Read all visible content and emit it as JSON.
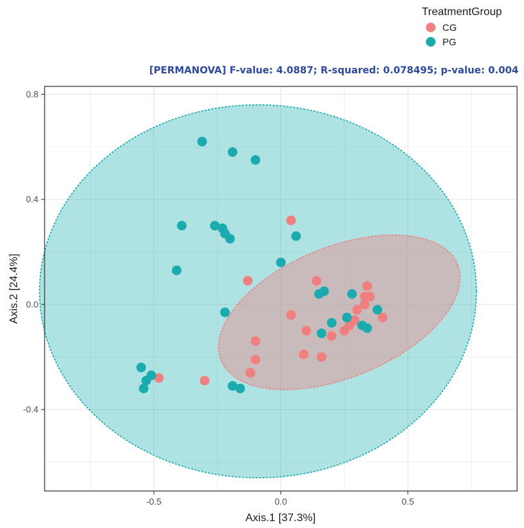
{
  "chart_data": {
    "type": "scatter",
    "title": "",
    "annotation": "[PERMANOVA] F-value: 4.0887; R-squared: 0.078495; p-value: 0.004",
    "xlabel": "Axis.1   [37.3%]",
    "ylabel": "Axis.2   [24.4%]",
    "xlim": [
      -0.93,
      0.93
    ],
    "ylim": [
      -0.71,
      0.83
    ],
    "x_ticks": [
      -0.5,
      0.0,
      0.5
    ],
    "x_tick_labels": [
      "-0.5",
      "0.0",
      "0.5"
    ],
    "y_ticks": [
      -0.4,
      0.0,
      0.4,
      0.8
    ],
    "y_tick_labels": [
      "-0.4",
      "0.0",
      "0.4",
      "0.8"
    ],
    "grid": true,
    "legend": {
      "title": "TreatmentGroup",
      "position": "top-right"
    },
    "series": [
      {
        "name": "CG",
        "color": "#F08080",
        "ellipse": {
          "cx": 0.23,
          "cy": -0.03,
          "rx": 0.5,
          "ry": 0.25,
          "angle_deg": 21
        },
        "points": [
          [
            -0.48,
            -0.28
          ],
          [
            -0.3,
            -0.29
          ],
          [
            -0.13,
            0.09
          ],
          [
            -0.1,
            -0.14
          ],
          [
            -0.1,
            -0.21
          ],
          [
            -0.12,
            -0.26
          ],
          [
            0.04,
            0.32
          ],
          [
            0.04,
            -0.04
          ],
          [
            0.1,
            -0.1
          ],
          [
            0.09,
            -0.19
          ],
          [
            0.14,
            0.09
          ],
          [
            0.16,
            -0.2
          ],
          [
            0.2,
            -0.12
          ],
          [
            0.25,
            -0.1
          ],
          [
            0.27,
            -0.08
          ],
          [
            0.29,
            -0.06
          ],
          [
            0.3,
            -0.02
          ],
          [
            0.33,
            0.0
          ],
          [
            0.33,
            0.03
          ],
          [
            0.35,
            0.03
          ],
          [
            0.34,
            0.07
          ],
          [
            0.4,
            -0.05
          ]
        ]
      },
      {
        "name": "PG",
        "color": "#1AABAE",
        "ellipse": {
          "cx": -0.09,
          "cy": 0.05,
          "rx": 0.86,
          "ry": 0.71,
          "angle_deg": 0
        },
        "points": [
          [
            -0.31,
            0.62
          ],
          [
            -0.19,
            0.58
          ],
          [
            -0.1,
            0.55
          ],
          [
            -0.39,
            0.3
          ],
          [
            -0.26,
            0.3
          ],
          [
            -0.23,
            0.29
          ],
          [
            -0.22,
            0.27
          ],
          [
            -0.2,
            0.25
          ],
          [
            -0.41,
            0.13
          ],
          [
            0.06,
            0.26
          ],
          [
            0.0,
            0.16
          ],
          [
            -0.22,
            -0.03
          ],
          [
            -0.55,
            -0.24
          ],
          [
            -0.53,
            -0.29
          ],
          [
            -0.51,
            -0.27
          ],
          [
            -0.54,
            -0.32
          ],
          [
            -0.19,
            -0.31
          ],
          [
            -0.16,
            -0.32
          ],
          [
            0.15,
            0.04
          ],
          [
            0.17,
            0.05
          ],
          [
            0.16,
            -0.11
          ],
          [
            0.2,
            -0.07
          ],
          [
            0.26,
            -0.05
          ],
          [
            0.28,
            0.04
          ],
          [
            0.32,
            -0.08
          ],
          [
            0.34,
            -0.09
          ],
          [
            0.38,
            -0.02
          ]
        ]
      }
    ]
  },
  "colors": {
    "panel_bg": "#FFFFFF",
    "grid": "#E6E6E6",
    "stat_text": "#2F4A9C"
  }
}
